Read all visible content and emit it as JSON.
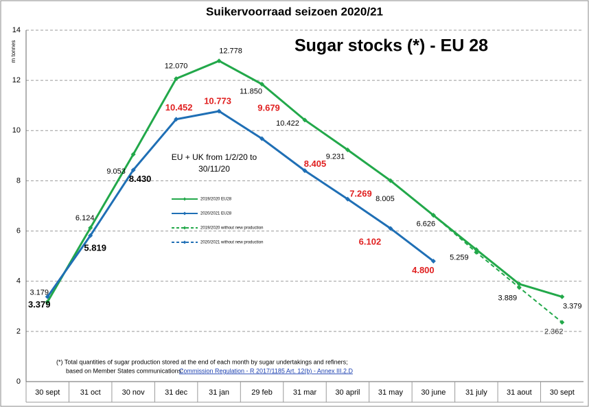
{
  "chart_data": {
    "type": "line",
    "title": "Suikervoorraad seizoen 2020/21",
    "subtitle": "Sugar stocks (*) - EU 28",
    "y_label": "m tonnes",
    "annotation": [
      "EU + UK from 1/2/20 to",
      "30/11/20"
    ],
    "footnote": [
      "(*) Total quantities of sugar production stored at the end of each month by sugar undertakings and refiners;",
      "based on Member States communications: "
    ],
    "footnote_link": "Commission Regulation - R 2017/1185 Art. 12(b) - Annex III.2.D",
    "categories": [
      "30 sept",
      "31 oct",
      "30 nov",
      "31 dec",
      "31 jan",
      "29 feb",
      "31 mar",
      "30 april",
      "31 may",
      "30 june",
      "31 july",
      "31 aout",
      "30 sept"
    ],
    "ylim": [
      0,
      14
    ],
    "yticks": [
      0,
      2,
      4,
      6,
      8,
      10,
      12,
      14
    ],
    "grid": true,
    "series": [
      {
        "name": "2019/2020  EU28",
        "color": "#22a84a",
        "dashed": false,
        "values": [
          3.179,
          6.124,
          9.053,
          12.07,
          12.778,
          11.85,
          10.422,
          9.231,
          8.005,
          6.626,
          5.259,
          3.889,
          3.379
        ],
        "value_labels": [
          "3.179",
          "6.124",
          "9.053",
          "12.070",
          "12.778",
          "11.850",
          "10.422",
          "9.231",
          "8.005",
          "6.626",
          "5.259",
          "3.889",
          "3.379"
        ]
      },
      {
        "name": "2020/2021  EU28",
        "color": "#1f6fb5",
        "dashed": false,
        "values": [
          3.379,
          5.819,
          8.43,
          10.452,
          10.773,
          9.679,
          8.405,
          7.269,
          6.102,
          4.8,
          null,
          null,
          null
        ],
        "value_labels": [
          "3.379",
          "5.819",
          "8.430",
          "10.452",
          "10.773",
          "9.679",
          "8.405",
          "7.269",
          "6.102",
          "4.800",
          null,
          null,
          null
        ]
      },
      {
        "name": "2019/2020 without new production",
        "color": "#22a84a",
        "dashed": true,
        "values": [
          null,
          null,
          null,
          null,
          null,
          null,
          null,
          null,
          null,
          6.626,
          5.15,
          3.75,
          2.362
        ],
        "value_labels": [
          null,
          null,
          null,
          null,
          null,
          null,
          null,
          null,
          null,
          null,
          null,
          null,
          "2.362"
        ]
      },
      {
        "name": "2020/2021 without new production",
        "color": "#1f6fb5",
        "dashed": true,
        "values": [
          null,
          null,
          null,
          null,
          null,
          null,
          null,
          null,
          null,
          null,
          null,
          null,
          null
        ]
      }
    ]
  }
}
